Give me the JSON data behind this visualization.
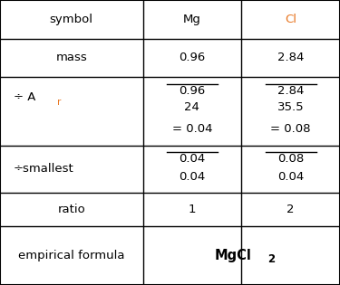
{
  "fig_width": 3.75,
  "fig_height": 3.15,
  "bg_color": "#ffffff",
  "border_color": "#000000",
  "symbol_mg": "Mg",
  "symbol_cl": "Cl",
  "mass_mg": "0.96",
  "mass_cl": "2.84",
  "ar_mg_num": "0.96",
  "ar_mg_den": "24",
  "ar_mg_result": "= 0.04",
  "ar_cl_num": "2.84",
  "ar_cl_den": "35.5",
  "ar_cl_result": "= 0.08",
  "smallest_mg_num": "0.04",
  "smallest_mg_den": "0.04",
  "smallest_cl_num": "0.08",
  "smallest_cl_den": "0.04",
  "ratio_mg": "1",
  "ratio_cl": "2",
  "empirical_main": "MgCl",
  "empirical_subscript": "2",
  "text_color": "#000000",
  "orange_color": "#e87722",
  "font_size": 9.5,
  "small_font_size": 7.5,
  "row_tops": [
    1.0,
    0.865,
    0.73,
    0.49,
    0.325,
    0.205,
    0.0
  ],
  "col_bounds": [
    0.0,
    0.42,
    0.71,
    1.0
  ]
}
